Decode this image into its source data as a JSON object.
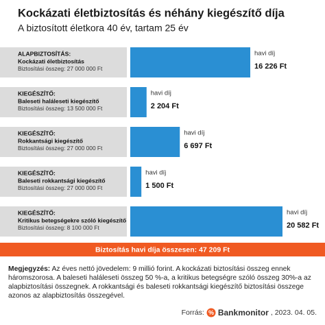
{
  "chart_data": {
    "type": "bar",
    "orientation": "horizontal",
    "title": "Kockázati életbiztosítás és néhány kiegészítő díja",
    "subtitle": "A biztosított életkora 40 év, tartam 25 év",
    "category_kinds": [
      "ALAPBIZTOSÍTÁS:",
      "KIEGÉSZÍTŐ:",
      "KIEGÉSZÍTŐ:",
      "KIEGÉSZÍTŐ:",
      "KIEGÉSZÍTŐ:"
    ],
    "categories": [
      "Kockázati életbiztosítás",
      "Baleseti haláleseti kiegészítő",
      "Rokkantsági kiegészítő",
      "Baleseti rokkantsági kiegészítő",
      "Kritikus betegségekre  szóló kiegészítő"
    ],
    "category_notes": [
      "Biztosítási összeg: 27 000 000 Ft",
      "Biztosítási összeg: 13 500 000 Ft",
      "Biztosítási összeg: 27 000 000 Ft",
      "Biztosítási összeg: 27 000 000 Ft",
      "Biztosítási összeg: 8 100 000 Ft"
    ],
    "value_caption": "havi díj",
    "values": [
      16226,
      2204,
      6697,
      1500,
      20582
    ],
    "value_labels": [
      "16 226 Ft",
      "2 204 Ft",
      "6 697 Ft",
      "1 500 Ft",
      "20 582 Ft"
    ],
    "color": "#2a8fd3",
    "total_label": "Biztosítás havi díja összesen: 47 209 Ft",
    "total_color": "#f05a22",
    "note_label": "Megjegyzés:",
    "note_text": "Az éves nettó jövedelem: 9 millió forint. A kockázati biztosítási összeg ennek háromszorosa. A baleseti haláleseti összeg 50 %-a, a kritikus betegségre szóló összeg 30%-a az alapbiztosítási összegnek. A rokkantsági és baleseti rokkantsági kiegészítő biztosítási összege azonos az alapbiztosítás összegével.",
    "source_label": "Forrás:",
    "source_name": "Bankmonitor",
    "source_date": ", 2023. 04. 05."
  }
}
